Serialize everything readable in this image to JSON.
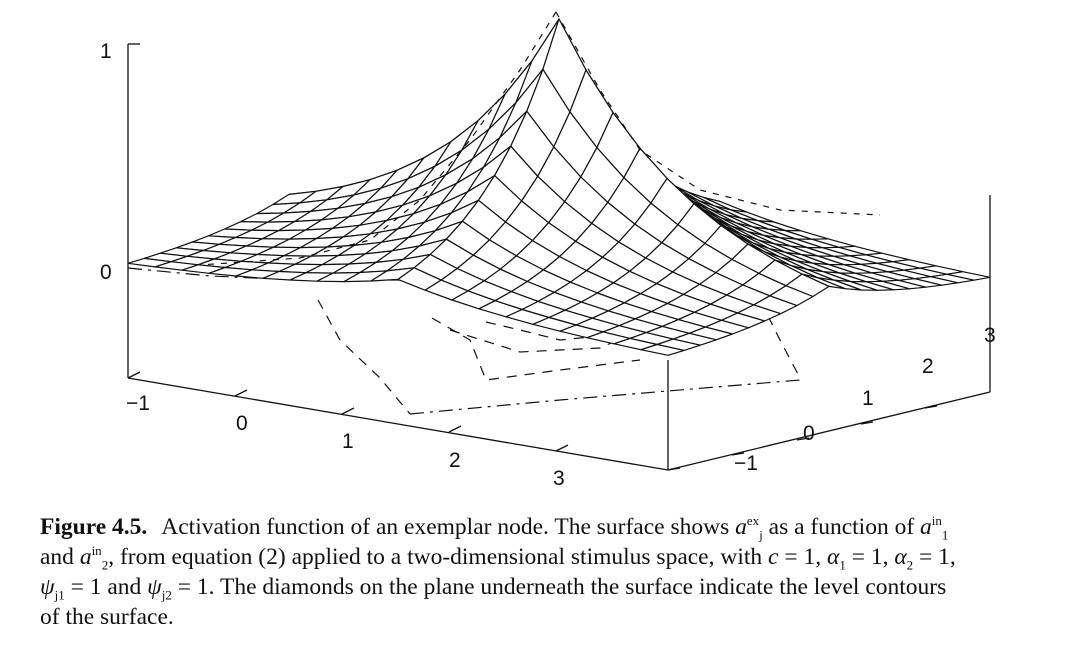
{
  "figure": {
    "z_ticks": [
      "1",
      "0"
    ],
    "x_ticks": [
      "−1",
      "0",
      "1",
      "2",
      "3"
    ],
    "y_ticks": [
      "−1",
      "0",
      "1",
      "2",
      "3"
    ]
  },
  "caption": {
    "label": "Figure 4.5.",
    "l1_a": "Activation function of an exemplar node. The surface shows",
    "l1_a_sym": "a",
    "l1_a_sub": "j",
    "l1_a_sup": "ex",
    "l1_b": "as a function of",
    "l1_b_sym": "a",
    "l1_b_sub": "1",
    "l1_b_sup": "in",
    "l2_a": "and",
    "l2_sym": "a",
    "l2_sub": "2",
    "l2_sup": "in",
    "l2_b": ", from equation (2) applied to a two-dimensional stimulus space, with",
    "l2_c": "c",
    "l2_d": "= 1,",
    "l2_e": "α",
    "l2_e_sub": "1",
    "l2_f": "= 1,",
    "l2_g": "α",
    "l2_g_sub": "2",
    "l2_h": "= 1,",
    "l3_psi1": "ψ",
    "l3_psi1_sub": "j1",
    "l3_a": "= 1 and",
    "l3_psi2": "ψ",
    "l3_psi2_sub": "j2",
    "l3_b": "= 1. The diamonds on the plane underneath the surface indicate the level contours",
    "l4": "of the surface."
  }
}
